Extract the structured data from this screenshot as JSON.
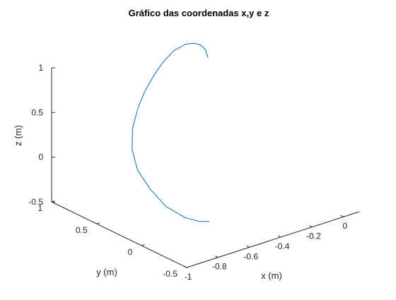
{
  "chart_data": {
    "type": "line",
    "projection": "3d",
    "title": "Gráfico das coordenadas x,y e z",
    "xlabel": "x (m)",
    "ylabel": "y (m)",
    "zlabel": "z (m)",
    "xlim": [
      -1,
      0.1
    ],
    "ylim": [
      -0.5,
      1
    ],
    "zlim": [
      -0.5,
      1
    ],
    "xticks": [
      -1,
      -0.8,
      -0.6,
      -0.4,
      -0.2,
      0
    ],
    "xtick_labels": [
      "-1",
      "-0.8",
      "-0.6",
      "-0.4",
      "-0.2",
      "0"
    ],
    "yticks": [
      -0.5,
      0,
      0.5,
      1
    ],
    "ytick_labels": [
      "-0.5",
      "0",
      "0.5",
      "1"
    ],
    "zticks": [
      -0.5,
      0,
      0.5,
      1
    ],
    "ztick_labels": [
      "-0.5",
      "0",
      "0.5",
      "1"
    ],
    "grid": false,
    "line_color": "#0072BD",
    "series": [
      {
        "x": [
          -0.74,
          -0.78,
          -0.81,
          -0.845,
          -0.86,
          -0.855,
          -0.82,
          -0.76,
          -0.68,
          -0.6,
          -0.52,
          -0.45,
          -0.38,
          -0.33,
          -0.31,
          -0.3,
          -0.305,
          -0.32
        ],
        "y": [
          -0.3,
          -0.25,
          -0.15,
          0,
          0.15,
          0.3,
          0.42,
          0.52,
          0.6,
          0.66,
          0.7,
          0.72,
          0.72,
          0.68,
          0.62,
          0.56,
          0.5,
          0.45
        ],
        "z": [
          -0.23,
          -0.23,
          -0.22,
          -0.15,
          -0.02,
          0.12,
          0.27,
          0.42,
          0.56,
          0.68,
          0.79,
          0.89,
          0.98,
          1.04,
          1.07,
          1.07,
          1.05,
          1.0
        ]
      }
    ]
  }
}
